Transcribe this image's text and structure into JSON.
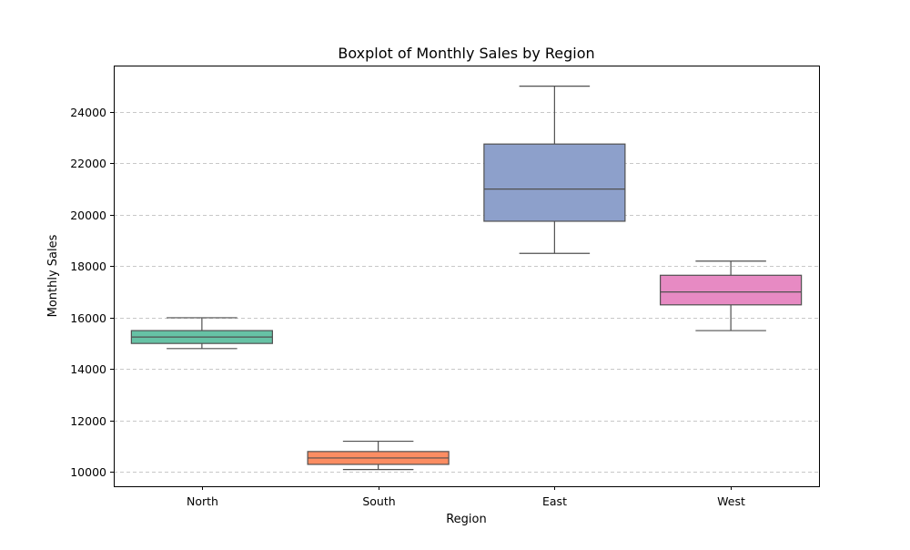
{
  "chart_data": {
    "type": "box",
    "title": "Boxplot of Monthly Sales by Region",
    "xlabel": "Region",
    "ylabel": "Monthly Sales",
    "ylim": [
      9450,
      25800
    ],
    "yticks": [
      10000,
      12000,
      14000,
      16000,
      18000,
      20000,
      22000,
      24000
    ],
    "ytick_labels": [
      "10000",
      "12000",
      "14000",
      "16000",
      "18000",
      "20000",
      "22000",
      "24000"
    ],
    "grid": "y, dashed",
    "categories": [
      "North",
      "South",
      "East",
      "West"
    ],
    "boxes": [
      {
        "category": "North",
        "whisker_low": 14800,
        "q1": 15000,
        "median": 15250,
        "q3": 15500,
        "whisker_high": 16000,
        "color": "#66c2a5"
      },
      {
        "category": "South",
        "whisker_low": 10100,
        "q1": 10300,
        "median": 10550,
        "q3": 10800,
        "whisker_high": 11200,
        "color": "#fc8d62"
      },
      {
        "category": "East",
        "whisker_low": 18500,
        "q1": 19750,
        "median": 21000,
        "q3": 22750,
        "whisker_high": 25000,
        "color": "#8da0cb"
      },
      {
        "category": "West",
        "whisker_low": 15500,
        "q1": 16500,
        "median": 17000,
        "q3": 17650,
        "whisker_high": 18200,
        "color": "#e78ac3"
      }
    ]
  }
}
